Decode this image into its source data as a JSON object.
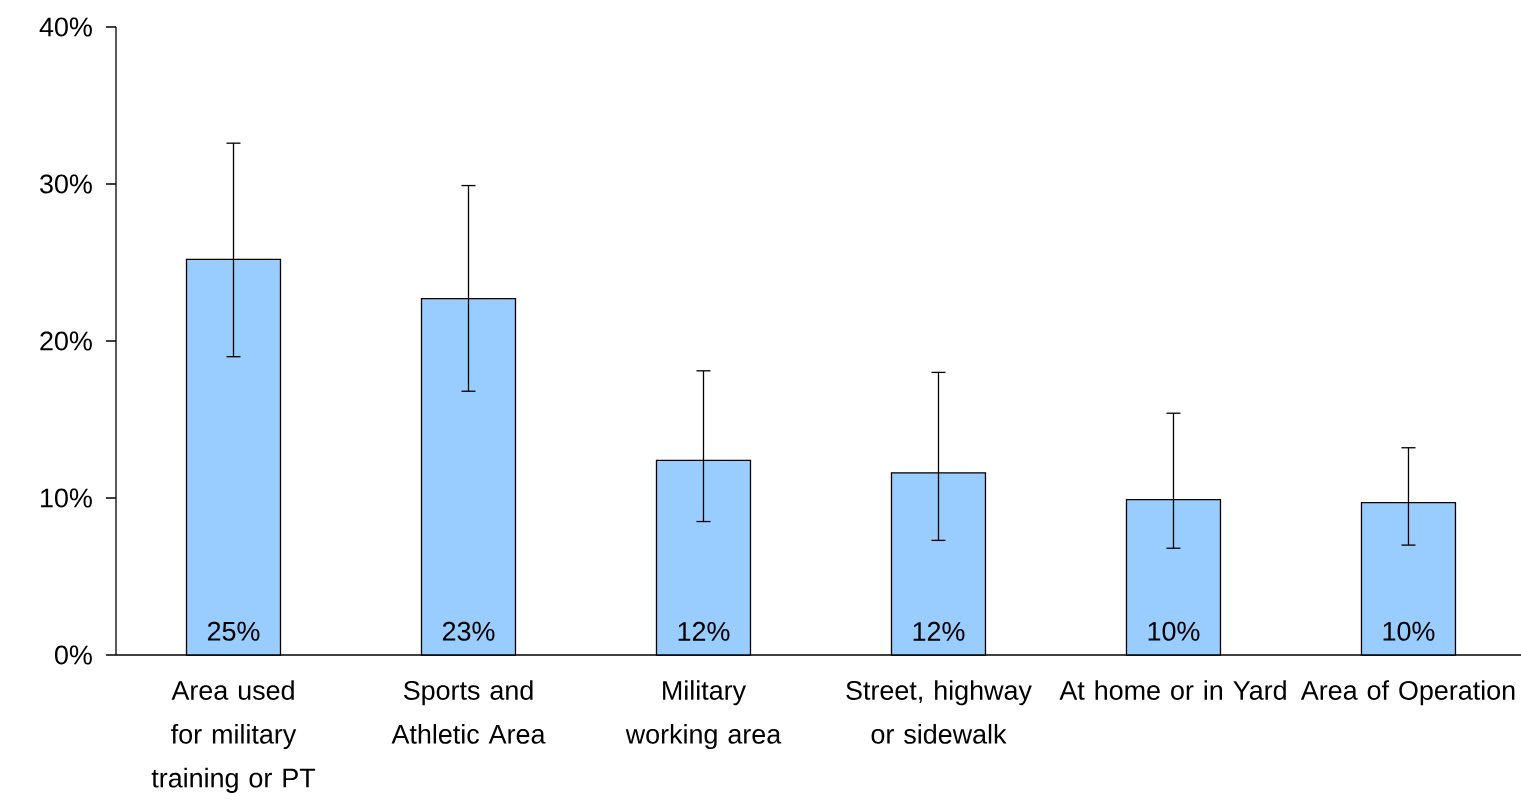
{
  "chart_data": {
    "type": "bar",
    "categories": [
      "Area used for military training or PT",
      "Sports and Athletic Area",
      "Military working area",
      "Street, highway or sidewalk",
      "At home or in Yard",
      "Area of Operation"
    ],
    "values": [
      25.2,
      22.7,
      12.4,
      11.6,
      9.9,
      9.7
    ],
    "value_labels": [
      "25%",
      "23%",
      "12%",
      "12%",
      "10%",
      "10%"
    ],
    "errors": [
      [
        19.0,
        32.6
      ],
      [
        16.8,
        29.9
      ],
      [
        8.5,
        18.1
      ],
      [
        7.3,
        18.0
      ],
      [
        6.8,
        15.4
      ],
      [
        7.0,
        13.2
      ]
    ],
    "color": "#99ccff",
    "ylim": [
      0,
      40
    ],
    "yticks": [
      {
        "value": 0,
        "label": "0%"
      },
      {
        "value": 10,
        "label": "10%"
      },
      {
        "value": 20,
        "label": "20%"
      },
      {
        "value": 30,
        "label": "30%"
      },
      {
        "value": 40,
        "label": "40%"
      }
    ]
  }
}
